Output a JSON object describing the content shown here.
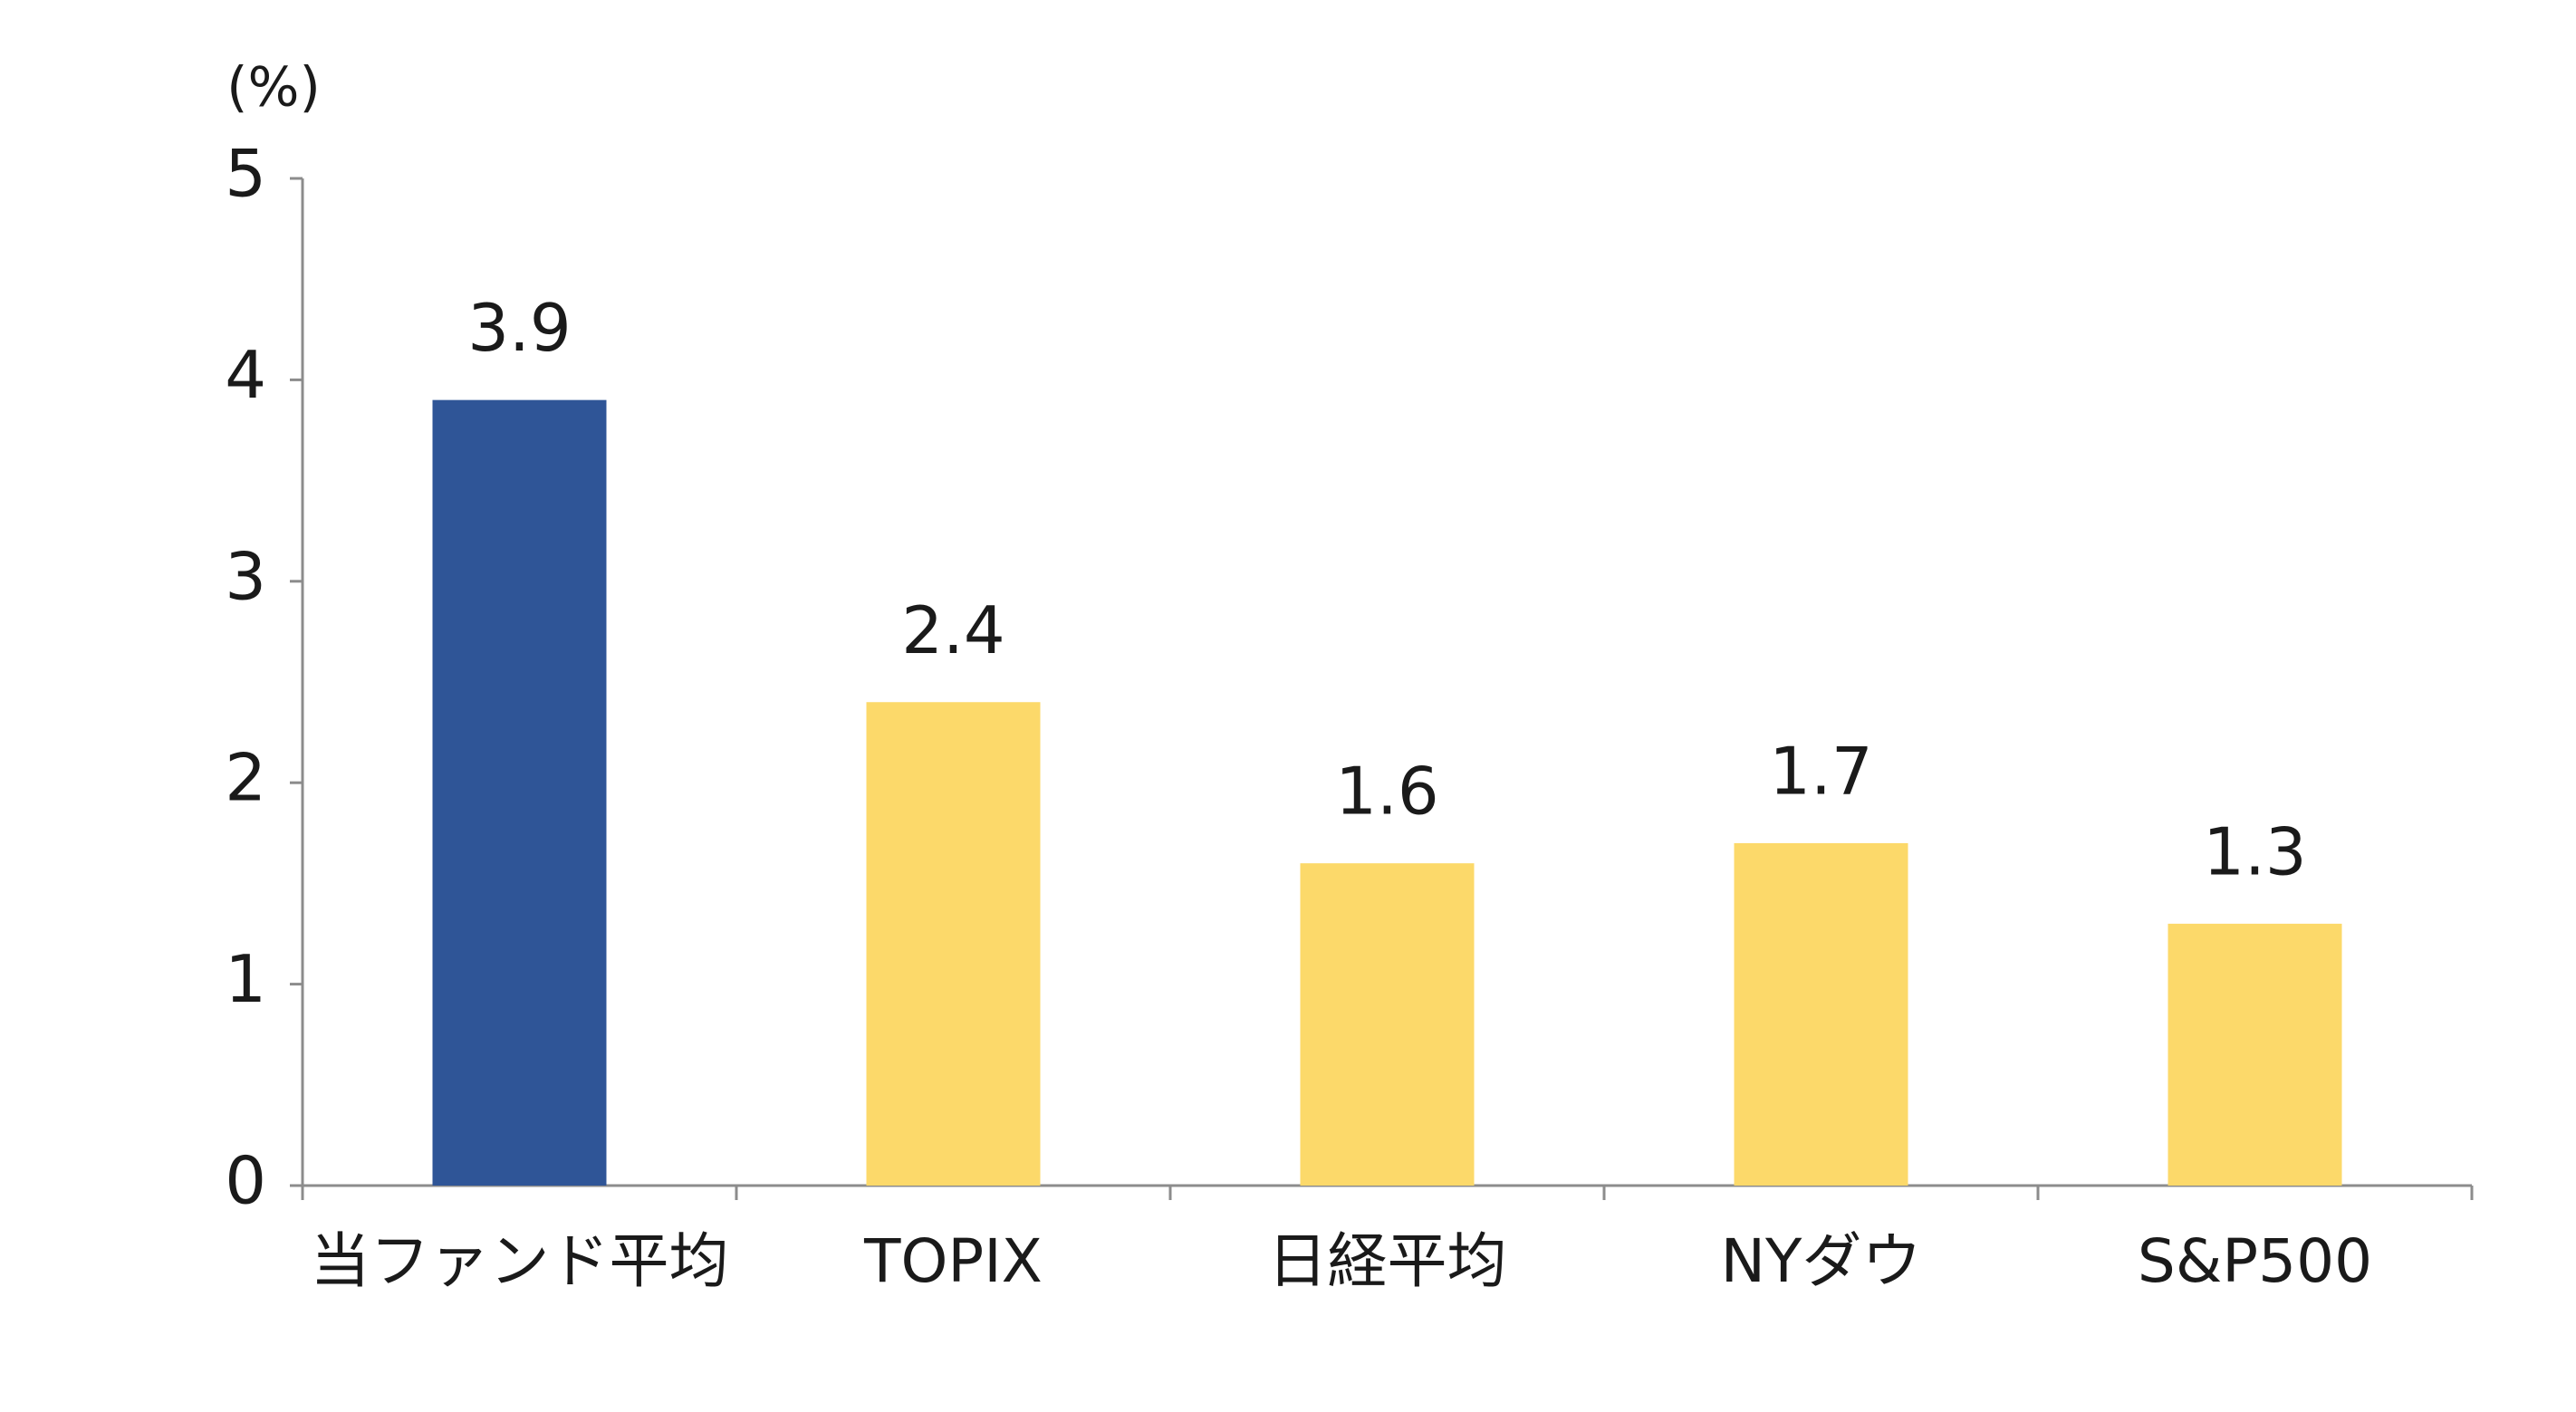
{
  "chart_data": {
    "type": "bar",
    "y_label": "(%)",
    "categories": [
      "当ファンド平均",
      "TOPIX",
      "日経平均",
      "NYダウ",
      "S&P500"
    ],
    "values": [
      3.9,
      2.4,
      1.6,
      1.7,
      1.3
    ],
    "colors": [
      "#2f5597",
      "#fcd96a",
      "#fcd96a",
      "#fcd96a",
      "#fcd96a"
    ],
    "ylim": [
      0,
      5
    ],
    "yticks": [
      0,
      1,
      2,
      3,
      4,
      5
    ],
    "grid": false
  }
}
